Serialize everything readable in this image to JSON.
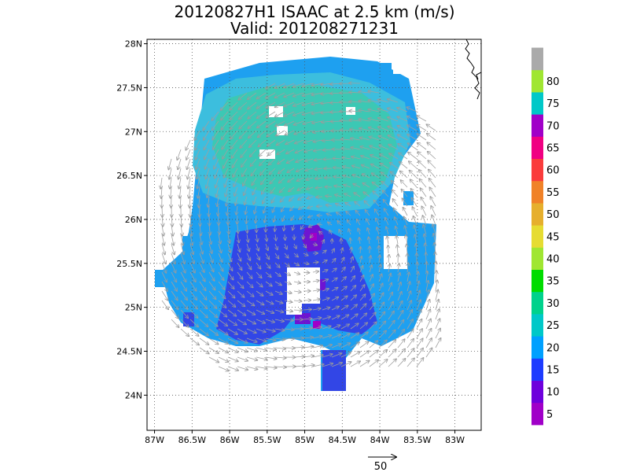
{
  "title": "20120827H1 ISAAC at 2.5 km (m/s)",
  "subtitle": "Valid: 201208271231",
  "map": {
    "lon_range": [
      -87.1,
      -82.65
    ],
    "lat_range": [
      23.6,
      28.05
    ],
    "lon_ticks": [
      {
        "value": -87,
        "label": "87W"
      },
      {
        "value": -86.5,
        "label": "86.5W"
      },
      {
        "value": -86,
        "label": "86W"
      },
      {
        "value": -85.5,
        "label": "85.5W"
      },
      {
        "value": -85,
        "label": "85W"
      },
      {
        "value": -84.5,
        "label": "84.5W"
      },
      {
        "value": -84,
        "label": "84W"
      },
      {
        "value": -83.5,
        "label": "83.5W"
      },
      {
        "value": -83,
        "label": "83W"
      }
    ],
    "lat_ticks": [
      {
        "value": 24,
        "label": "24N"
      },
      {
        "value": 24.5,
        "label": "24.5N"
      },
      {
        "value": 25,
        "label": "25N"
      },
      {
        "value": 25.5,
        "label": "25.5N"
      },
      {
        "value": 26,
        "label": "26N"
      },
      {
        "value": 26.5,
        "label": "26.5N"
      },
      {
        "value": 27,
        "label": "27N"
      },
      {
        "value": 27.5,
        "label": "27.5N"
      },
      {
        "value": 28,
        "label": "28N"
      }
    ],
    "gridlines": "dotted",
    "storm_center": {
      "lon": -84.85,
      "lat": 25.78
    }
  },
  "colorbar": {
    "levels": [
      "5",
      "10",
      "15",
      "20",
      "25",
      "30",
      "35",
      "40",
      "45",
      "50",
      "55",
      "60",
      "65",
      "70",
      "75",
      "80"
    ],
    "colors": [
      "#a000c8",
      "#6e00dc",
      "#1e3cff",
      "#00a0ff",
      "#00c8c8",
      "#00d28c",
      "#00dc00",
      "#a0e632",
      "#e6dc32",
      "#e6af2d",
      "#f08228",
      "#fa3c3c",
      "#f00082",
      "#a000c8",
      "#00c8c8",
      "#a0e632",
      "#aaaaaa"
    ]
  },
  "reference_vector": {
    "label": "50",
    "speed": 50,
    "units": "m/s"
  },
  "colors": {
    "band_75": "#3cc8b4",
    "band_70": "#3cbede",
    "band_20": "#1ea0f0",
    "band_15": "#3246e6",
    "band_10": "#6e14d2",
    "band_5": "#a000c8",
    "arrow": "#a0a0a0"
  }
}
